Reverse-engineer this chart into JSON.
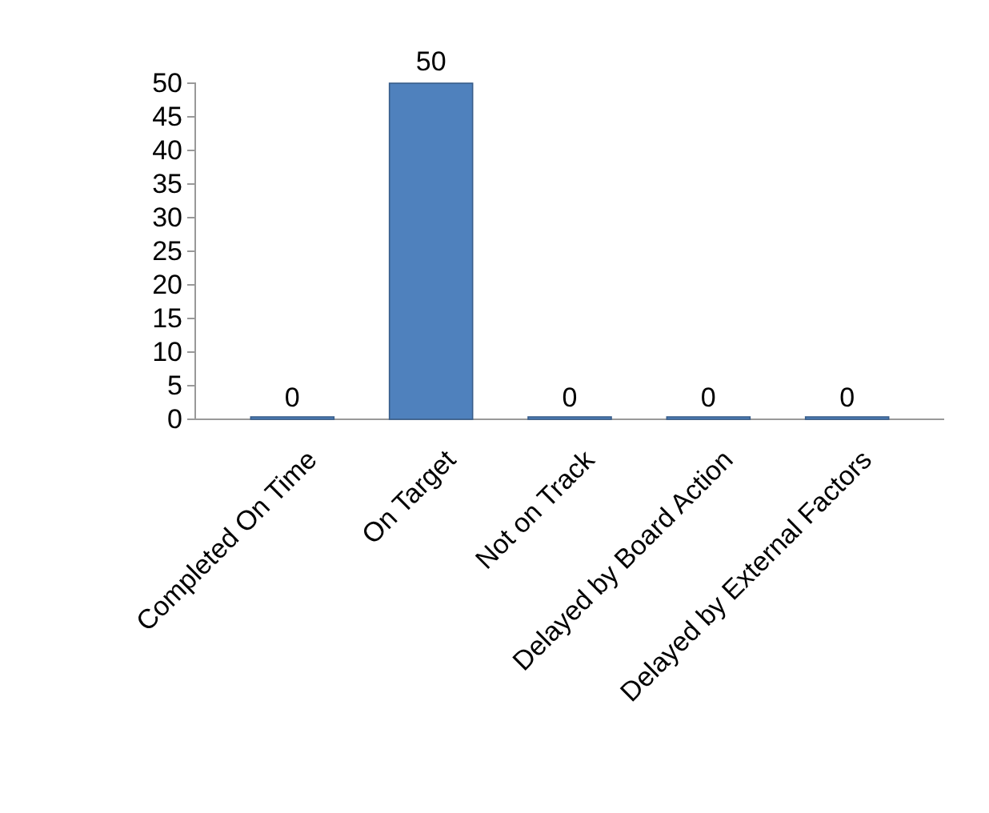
{
  "chart_data": {
    "type": "bar",
    "categories": [
      "Completed On Time",
      "On Target",
      "Not on Track",
      "Delayed by Board Action",
      "Delayed by External Factors"
    ],
    "values": [
      0,
      50,
      0,
      0,
      0
    ],
    "color": "#4f81bd",
    "ylim": [
      0,
      50
    ],
    "yticks": [
      0,
      5,
      10,
      15,
      20,
      25,
      30,
      35,
      40,
      45,
      50
    ],
    "data_labels": true
  }
}
